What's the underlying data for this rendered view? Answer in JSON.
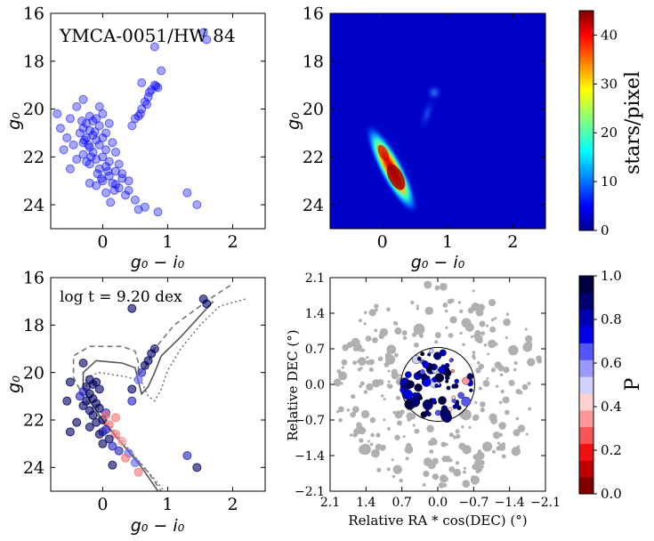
{
  "chart_data": [
    {
      "type": "scatter",
      "panel": "cmd-raw",
      "title": "",
      "annotation": "YMCA-0051/HW 84",
      "xlabel": "g₀ − i₀",
      "ylabel": "g₀",
      "xlim": [
        -0.8,
        2.5
      ],
      "ylim": [
        25,
        16
      ],
      "xticks": [
        "0",
        "1",
        "2"
      ],
      "yticks": [
        "16",
        "18",
        "20",
        "22",
        "24"
      ],
      "point_color": "#0000ff",
      "points": [
        [
          -0.2,
          20.3
        ],
        [
          -0.15,
          20.5
        ],
        [
          -0.25,
          20.6
        ],
        [
          -0.1,
          20.4
        ],
        [
          -0.3,
          20.8
        ],
        [
          -0.2,
          20.9
        ],
        [
          -0.05,
          20.7
        ],
        [
          -0.35,
          21.0
        ],
        [
          -0.15,
          21.1
        ],
        [
          -0.25,
          21.2
        ],
        [
          -0.1,
          21.3
        ],
        [
          -0.3,
          21.4
        ],
        [
          -0.45,
          21.5
        ],
        [
          -0.2,
          21.6
        ],
        [
          -0.05,
          21.5
        ],
        [
          0.05,
          21.7
        ],
        [
          -0.15,
          21.8
        ],
        [
          -0.3,
          21.9
        ],
        [
          0.0,
          22.0
        ],
        [
          -0.1,
          22.1
        ],
        [
          0.1,
          22.2
        ],
        [
          -0.2,
          22.3
        ],
        [
          0.05,
          22.4
        ],
        [
          -0.05,
          22.5
        ],
        [
          0.2,
          22.6
        ],
        [
          0.1,
          22.8
        ],
        [
          0.3,
          22.9
        ],
        [
          0.0,
          23.0
        ],
        [
          0.15,
          23.1
        ],
        [
          -0.1,
          23.2
        ],
        [
          0.25,
          23.3
        ],
        [
          0.4,
          23.4
        ],
        [
          0.35,
          23.6
        ],
        [
          0.5,
          23.8
        ],
        [
          0.55,
          24.2
        ],
        [
          0.85,
          24.3
        ],
        [
          0.65,
          24.1
        ],
        [
          0.12,
          23.9
        ],
        [
          0.2,
          23.15
        ],
        [
          0.3,
          22.7
        ],
        [
          -0.55,
          21.2
        ],
        [
          -0.5,
          20.4
        ],
        [
          -0.4,
          19.9
        ],
        [
          -0.3,
          19.6
        ],
        [
          -0.65,
          20.8
        ],
        [
          -0.6,
          21.7
        ],
        [
          -0.4,
          22.1
        ],
        [
          -0.25,
          22.2
        ],
        [
          -0.7,
          20.2
        ],
        [
          -0.5,
          22.5
        ],
        [
          -0.2,
          23.1
        ],
        [
          0.05,
          21.0
        ],
        [
          0.1,
          20.6
        ],
        [
          0.0,
          20.2
        ],
        [
          -0.05,
          19.9
        ],
        [
          0.15,
          21.4
        ],
        [
          0.2,
          21.8
        ],
        [
          0.25,
          22.3
        ],
        [
          0.05,
          23.5
        ],
        [
          0.4,
          23.0
        ],
        [
          0.45,
          20.7
        ],
        [
          0.55,
          20.3
        ],
        [
          0.6,
          20.0
        ],
        [
          0.65,
          19.7
        ],
        [
          0.7,
          19.5
        ],
        [
          0.75,
          19.2
        ],
        [
          0.8,
          19.0
        ],
        [
          0.85,
          19.1
        ],
        [
          0.6,
          18.9
        ],
        [
          0.72,
          19.3
        ],
        [
          0.5,
          20.4
        ],
        [
          0.58,
          20.2
        ],
        [
          0.68,
          19.8
        ],
        [
          0.9,
          18.4
        ],
        [
          0.8,
          17.4
        ],
        [
          1.6,
          17.1
        ],
        [
          1.55,
          16.8
        ],
        [
          1.3,
          23.5
        ],
        [
          1.45,
          24.0
        ],
        [
          0.82,
          19.05
        ],
        [
          -0.08,
          22.7
        ],
        [
          -0.18,
          22.0
        ],
        [
          -0.28,
          21.3
        ],
        [
          0.0,
          21.2
        ],
        [
          -0.12,
          20.95
        ],
        [
          0.08,
          22.6
        ],
        [
          -0.02,
          22.9
        ],
        [
          0.18,
          23.4
        ],
        [
          -0.22,
          21.5
        ],
        [
          -0.32,
          20.5
        ]
      ]
    },
    {
      "type": "heatmap",
      "panel": "hess",
      "title": "",
      "xlabel": "g₀ − i₀",
      "ylabel": "g₀",
      "xlim": [
        -0.8,
        2.5
      ],
      "ylim": [
        25,
        16
      ],
      "xticks": [
        "0",
        "1",
        "2"
      ],
      "yticks": [
        "16",
        "18",
        "20",
        "22",
        "24"
      ],
      "colorbar_label": "stars/pixel",
      "colorbar_range": [
        0,
        45
      ],
      "colorbar_ticks": [
        "0",
        "10",
        "20",
        "30",
        "40"
      ],
      "peak_density": 45,
      "peak_location": [
        0.2,
        22.8
      ],
      "secondary_feature": [
        0.8,
        19.3
      ]
    },
    {
      "type": "scatter",
      "panel": "cmd-membership",
      "annotation": "log t = 9.20 dex",
      "xlabel": "g₀ − i₀",
      "ylabel": "g₀",
      "xlim": [
        -0.8,
        2.5
      ],
      "ylim": [
        25,
        16
      ],
      "xticks": [
        "0",
        "1",
        "2"
      ],
      "yticks": [
        "16",
        "18",
        "20",
        "22",
        "24"
      ],
      "isochrones": [
        "solid",
        "dashed",
        "dotted"
      ],
      "points_p": [
        [
          -0.2,
          20.3,
          0.9
        ],
        [
          -0.15,
          20.5,
          0.85
        ],
        [
          -0.25,
          20.6,
          0.8
        ],
        [
          -0.1,
          20.4,
          0.95
        ],
        [
          -0.3,
          20.8,
          0.75
        ],
        [
          -0.2,
          20.9,
          0.9
        ],
        [
          -0.05,
          20.7,
          0.85
        ],
        [
          -0.35,
          21.0,
          0.7
        ],
        [
          -0.15,
          21.1,
          0.9
        ],
        [
          -0.25,
          21.2,
          0.8
        ],
        [
          -0.1,
          21.3,
          0.95
        ],
        [
          -0.3,
          21.4,
          0.85
        ],
        [
          -0.2,
          21.6,
          0.9
        ],
        [
          -0.05,
          21.5,
          0.85
        ],
        [
          0.05,
          21.7,
          0.6
        ],
        [
          -0.15,
          21.8,
          0.8
        ],
        [
          0.0,
          22.0,
          0.85
        ],
        [
          -0.1,
          22.1,
          0.9
        ],
        [
          0.1,
          22.2,
          0.3
        ],
        [
          0.05,
          22.4,
          0.7
        ],
        [
          0.2,
          22.6,
          0.35
        ],
        [
          0.1,
          22.8,
          0.8
        ],
        [
          0.3,
          22.9,
          0.4
        ],
        [
          0.0,
          23.0,
          0.85
        ],
        [
          0.15,
          23.1,
          0.75
        ],
        [
          0.25,
          23.3,
          0.65
        ],
        [
          0.4,
          23.4,
          0.5
        ],
        [
          0.35,
          23.6,
          0.3
        ],
        [
          0.5,
          23.8,
          0.55
        ],
        [
          0.55,
          24.2,
          0.3
        ],
        [
          -0.55,
          21.2,
          0.9
        ],
        [
          -0.5,
          20.4,
          0.85
        ],
        [
          -0.5,
          22.5,
          0.8
        ],
        [
          -0.4,
          22.1,
          0.85
        ],
        [
          0.45,
          20.7,
          0.8
        ],
        [
          0.6,
          20.0,
          0.75
        ],
        [
          0.7,
          19.5,
          0.85
        ],
        [
          0.75,
          19.2,
          0.8
        ],
        [
          0.65,
          19.7,
          0.9
        ],
        [
          0.8,
          19.0,
          0.85
        ],
        [
          0.55,
          20.3,
          0.55
        ],
        [
          0.45,
          21.2,
          0.6
        ],
        [
          1.6,
          17.1,
          0.95
        ],
        [
          1.55,
          16.9,
          0.9
        ],
        [
          1.3,
          23.5,
          0.7
        ],
        [
          1.45,
          24.0,
          0.95
        ],
        [
          0.45,
          17.3,
          0.85
        ],
        [
          -0.3,
          19.6,
          0.9
        ],
        [
          0.05,
          21.8,
          0.35
        ],
        [
          0.0,
          22.5,
          0.6
        ],
        [
          -0.2,
          22.3,
          0.9
        ],
        [
          0.2,
          21.9,
          0.3
        ],
        [
          0.15,
          23.9,
          0.85
        ],
        [
          -0.05,
          22.6,
          0.8
        ]
      ]
    },
    {
      "type": "scatter",
      "panel": "sky",
      "xlabel": "Relative RA * cos(DEC) (°)",
      "ylabel": "Relative DEC (°)",
      "xlim": [
        2.1,
        -2.1
      ],
      "ylim": [
        -2.1,
        2.1
      ],
      "xticks": [
        "2.1",
        "1.4",
        "0.7",
        "0.0",
        "−0.7",
        "−1.4",
        "−2.1"
      ],
      "yticks": [
        "2.1",
        "1.4",
        "0.7",
        "0.0",
        "−0.7",
        "−1.4",
        "−2.1"
      ],
      "cluster_radius_deg": 0.72,
      "colorbar_label": "P",
      "colorbar_range": [
        0,
        1
      ],
      "colorbar_ticks": [
        "0.0",
        "0.2",
        "0.4",
        "0.6",
        "0.8",
        "1.0"
      ],
      "colorbar_colors": [
        "#800000",
        "#c00000",
        "#ee1111",
        "#f55555",
        "#ff9999",
        "#ffd0d0",
        "#d0d0ff",
        "#9999ff",
        "#5555f8",
        "#0000e8",
        "#0000b0",
        "#000070",
        "#000040"
      ]
    }
  ]
}
